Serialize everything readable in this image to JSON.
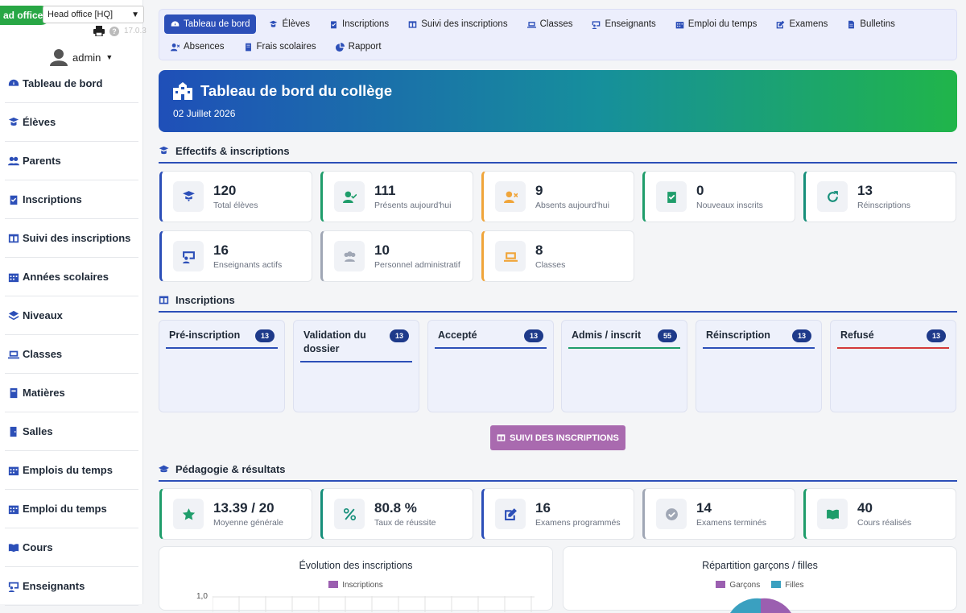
{
  "office": {
    "badge": "ad office",
    "select": "Head office [HQ]",
    "version": "17.0.3"
  },
  "user": {
    "name": "admin"
  },
  "sidebar": {
    "items": [
      {
        "label": "Tableau de bord",
        "icon": "dashboard-icon"
      },
      {
        "label": "Élèves",
        "icon": "student-icon"
      },
      {
        "label": "Parents",
        "icon": "users-icon"
      },
      {
        "label": "Inscriptions",
        "icon": "clipboard-check-icon"
      },
      {
        "label": "Suivi des inscriptions",
        "icon": "columns-icon"
      },
      {
        "label": "Années scolaires",
        "icon": "calendar-icon"
      },
      {
        "label": "Niveaux",
        "icon": "layers-icon"
      },
      {
        "label": "Classes",
        "icon": "laptop-icon"
      },
      {
        "label": "Matières",
        "icon": "book-icon"
      },
      {
        "label": "Salles",
        "icon": "door-icon"
      },
      {
        "label": "Emplois du temps",
        "icon": "calendar-icon"
      },
      {
        "label": "Emploi du temps",
        "icon": "calendar-icon"
      },
      {
        "label": "Cours",
        "icon": "open-book-icon"
      },
      {
        "label": "Enseignants",
        "icon": "teacher-icon"
      }
    ]
  },
  "topnav": {
    "items": [
      {
        "label": "Tableau de bord",
        "icon": "dashboard-icon",
        "active": true
      },
      {
        "label": "Élèves",
        "icon": "student-icon"
      },
      {
        "label": "Inscriptions",
        "icon": "clipboard-check-icon"
      },
      {
        "label": "Suivi des inscriptions",
        "icon": "columns-icon"
      },
      {
        "label": "Classes",
        "icon": "laptop-icon"
      },
      {
        "label": "Enseignants",
        "icon": "teacher-icon"
      },
      {
        "label": "Emploi du temps",
        "icon": "calendar-icon"
      },
      {
        "label": "Examens",
        "icon": "edit-icon"
      },
      {
        "label": "Bulletins",
        "icon": "file-icon"
      },
      {
        "label": "Absences",
        "icon": "user-x-icon"
      },
      {
        "label": "Frais scolaires",
        "icon": "invoice-icon"
      },
      {
        "label": "Rapport",
        "icon": "pie-chart-icon"
      }
    ]
  },
  "hero": {
    "title": "Tableau de bord du collège",
    "date": "02 Juillet 2026"
  },
  "effectifs": {
    "heading": "Effectifs & inscriptions",
    "cards": [
      {
        "value": "120",
        "label": "Total élèves",
        "accent": "#2c4fb8",
        "icon": "graduate-icon"
      },
      {
        "value": "111",
        "label": "Présents aujourd'hui",
        "accent": "#1f9d6b",
        "icon": "user-check-icon"
      },
      {
        "value": "9",
        "label": "Absents aujourd'hui",
        "accent": "#f0a53a",
        "icon": "user-x-icon"
      },
      {
        "value": "0",
        "label": "Nouveaux inscrits",
        "accent": "#1f9d6b",
        "icon": "clipboard-check-icon"
      },
      {
        "value": "13",
        "label": "Réinscriptions",
        "accent": "#168f7a",
        "icon": "redo-icon"
      },
      {
        "value": "16",
        "label": "Enseignants actifs",
        "accent": "#2c4fb8",
        "icon": "teacher-icon"
      },
      {
        "value": "10",
        "label": "Personnel administratif",
        "accent": "#a0a7b5",
        "icon": "users-icon"
      },
      {
        "value": "8",
        "label": "Classes",
        "accent": "#f0a53a",
        "icon": "laptop-icon"
      }
    ]
  },
  "inscriptions": {
    "heading": "Inscriptions",
    "columns": [
      {
        "title": "Pré-inscription",
        "count": "13",
        "color": "#2c4fb8"
      },
      {
        "title": "Validation du dossier",
        "count": "13",
        "color": "#2c4fb8"
      },
      {
        "title": "Accepté",
        "count": "13",
        "color": "#2c4fb8"
      },
      {
        "title": "Admis / inscrit",
        "count": "55",
        "color": "#1f9d6b"
      },
      {
        "title": "Réinscription",
        "count": "13",
        "color": "#2c4fb8"
      },
      {
        "title": "Refusé",
        "count": "13",
        "color": "#d33a3a"
      }
    ],
    "button": "SUIVI DES INSCRIPTIONS"
  },
  "pedagogie": {
    "heading": "Pédagogie & résultats",
    "cards": [
      {
        "value": "13.39 / 20",
        "label": "Moyenne générale",
        "accent": "#1f9d6b",
        "icon": "star-icon"
      },
      {
        "value": "80.8 %",
        "label": "Taux de réussite",
        "accent": "#168f7a",
        "icon": "percent-icon"
      },
      {
        "value": "16",
        "label": "Examens programmés",
        "accent": "#2c4fb8",
        "icon": "edit-icon"
      },
      {
        "value": "14",
        "label": "Examens terminés",
        "accent": "#a0a7b5",
        "icon": "check-circle-icon"
      },
      {
        "value": "40",
        "label": "Cours réalisés",
        "accent": "#1f9d6b",
        "icon": "open-book-icon"
      }
    ]
  },
  "charts": {
    "evolution": {
      "title": "Évolution des inscriptions",
      "legend": "Inscriptions",
      "color": "#9b5fb0",
      "ytick": "1,0"
    },
    "repartition": {
      "title": "Répartition garçons / filles",
      "legend": [
        "Garçons",
        "Filles"
      ],
      "colors": [
        "#9b5fb0",
        "#3aa0c0"
      ]
    }
  }
}
